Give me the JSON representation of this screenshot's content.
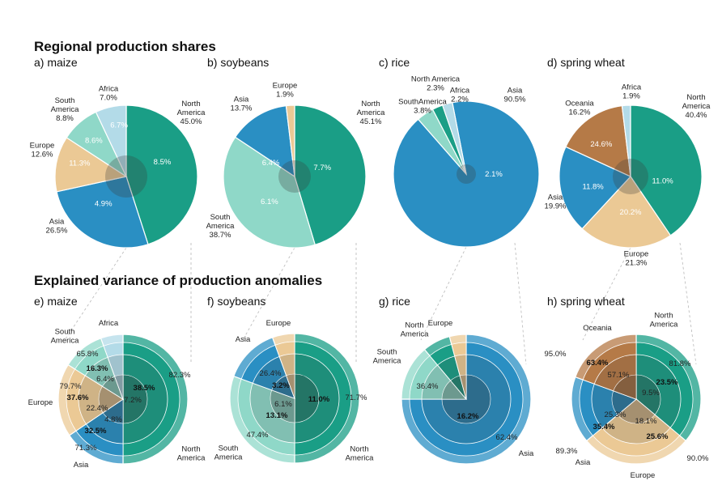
{
  "headings": {
    "top": "Regional production shares",
    "bottom": "Explained variance of production anomalies"
  },
  "colors": {
    "North America": "#1a9e86",
    "South America": "#8fd8c8",
    "Europe": "#ebc995",
    "Asia": "#2a8fc3",
    "Africa": "#b3dbe8",
    "Oceania": "#b57a47"
  },
  "chart_data": [
    {
      "type": "pie",
      "panel": "a) maize",
      "slices": [
        {
          "region": "North America",
          "lines": [
            "North",
            "America",
            "45.0%"
          ],
          "value": 45.0,
          "inner": "8.5%"
        },
        {
          "region": "Asia",
          "lines": [
            "Asia",
            "26.5%"
          ],
          "value": 26.5,
          "inner": "4.9%"
        },
        {
          "region": "Europe",
          "lines": [
            "Europe",
            "12.6%"
          ],
          "value": 12.6,
          "inner": "11.3%"
        },
        {
          "region": "South America",
          "lines": [
            "South",
            "America",
            "8.8%"
          ],
          "value": 8.8,
          "inner": "8.6%"
        },
        {
          "region": "Africa",
          "lines": [
            "Africa",
            "7.0%"
          ],
          "value": 7.0,
          "inner": "6.7%"
        }
      ]
    },
    {
      "type": "pie",
      "panel": "b) soybeans",
      "slices": [
        {
          "region": "North America",
          "lines": [
            "North",
            "America",
            "45.1%"
          ],
          "value": 45.1,
          "inner": "7.7%"
        },
        {
          "region": "South America",
          "lines": [
            "South",
            "America",
            "38.7%"
          ],
          "value": 38.7,
          "inner": "6.1%"
        },
        {
          "region": "Asia",
          "lines": [
            "Asia",
            "13.7%"
          ],
          "value": 13.7,
          "inner": "6.4%"
        },
        {
          "region": "Europe",
          "lines": [
            "Europe",
            "1.9%"
          ],
          "value": 1.9,
          "inner": ""
        }
      ]
    },
    {
      "type": "pie",
      "panel": "c) rice",
      "slices": [
        {
          "region": "Asia",
          "lines": [
            "Asia",
            "90.5%"
          ],
          "value": 90.5,
          "inner": "2.1%"
        },
        {
          "region": "South America",
          "lines": [
            "SouthAmerica",
            "3.8%"
          ],
          "value": 3.8,
          "inner": ""
        },
        {
          "region": "North America",
          "lines": [
            "North America",
            "2.3%"
          ],
          "value": 2.3,
          "inner": ""
        },
        {
          "region": "Africa",
          "lines": [
            "Africa",
            "2.2%"
          ],
          "value": 2.2,
          "inner": ""
        }
      ]
    },
    {
      "type": "pie",
      "panel": "d) spring wheat",
      "slices": [
        {
          "region": "North America",
          "lines": [
            "North",
            "America",
            "40.4%"
          ],
          "value": 40.4,
          "inner": "11.0%"
        },
        {
          "region": "Europe",
          "lines": [
            "Europe",
            "21.3%"
          ],
          "value": 21.3,
          "inner": "20.2%"
        },
        {
          "region": "Asia",
          "lines": [
            "Asia",
            "19.9%"
          ],
          "value": 19.9,
          "inner": "11.8%"
        },
        {
          "region": "Oceania",
          "lines": [
            "Oceania",
            "16.2%"
          ],
          "value": 16.2,
          "inner": "24.6%"
        },
        {
          "region": "Africa",
          "lines": [
            "Africa",
            "1.9%"
          ],
          "value": 1.9,
          "inner": ""
        }
      ]
    },
    {
      "type": "pie",
      "panel": "e) maize",
      "slices": [
        {
          "region": "North America",
          "name": [
            "North",
            "America"
          ],
          "outer": "82.3%",
          "mid": "38.5%",
          "core": "7.2%"
        },
        {
          "region": "Asia",
          "name": [
            "Asia"
          ],
          "outer": "71.3%",
          "mid": "32.5%",
          "core": "4.8%"
        },
        {
          "region": "Europe",
          "name": [
            "Europe"
          ],
          "outer": "79.7%",
          "mid": "37.6%",
          "core": "22.4%"
        },
        {
          "region": "South America",
          "name": [
            "South",
            "America"
          ],
          "outer": "65.8%",
          "mid": "16.3%",
          "core": "6.4%"
        },
        {
          "region": "Africa",
          "name": [
            "Africa"
          ],
          "outer": "",
          "mid": "",
          "core": ""
        }
      ]
    },
    {
      "type": "pie",
      "panel": "f) soybeans",
      "slices": [
        {
          "region": "North America",
          "name": [
            "North",
            "America"
          ],
          "outer": "71.7%",
          "mid": "11.0%",
          "core": ""
        },
        {
          "region": "South America",
          "name": [
            "South",
            "America"
          ],
          "outer": "47.4%",
          "mid": "13.1%",
          "core": "6.1%"
        },
        {
          "region": "Asia",
          "name": [
            "Asia"
          ],
          "outer": "26.4%",
          "mid": "3.2%",
          "core": ""
        },
        {
          "region": "Europe",
          "name": [
            "Europe"
          ],
          "outer": "",
          "mid": "",
          "core": ""
        }
      ]
    },
    {
      "type": "pie",
      "panel": "g) rice",
      "slices": [
        {
          "region": "Asia",
          "name": [
            "Asia"
          ],
          "outer": "62.4%",
          "mid": "16.2%",
          "core": ""
        },
        {
          "region": "South America",
          "name": [
            "South",
            "America"
          ],
          "outer": "36.4%",
          "mid": "",
          "core": ""
        },
        {
          "region": "North America",
          "name": [
            "North",
            "America"
          ],
          "outer": "",
          "mid": "",
          "core": ""
        },
        {
          "region": "Europe",
          "name": [
            "Europe"
          ],
          "outer": "",
          "mid": "",
          "core": ""
        }
      ]
    },
    {
      "type": "pie",
      "panel": "h) spring wheat",
      "slices": [
        {
          "region": "North America",
          "name": [
            "North",
            "America"
          ],
          "outer": "81.8%",
          "mid": "23.5%",
          "core": "9.5%"
        },
        {
          "region": "Europe",
          "name": [
            "Europe"
          ],
          "outer": "90.0%",
          "mid": "25.6%",
          "core": "18.1%"
        },
        {
          "region": "Asia",
          "name": [
            "Asia"
          ],
          "outer": "89.3%",
          "mid": "35.4%",
          "core": "25.3%"
        },
        {
          "region": "Oceania",
          "name": [
            "Oceania"
          ],
          "outer": "95.0%",
          "mid": "63.4%",
          "core": "57.1%"
        }
      ]
    }
  ]
}
